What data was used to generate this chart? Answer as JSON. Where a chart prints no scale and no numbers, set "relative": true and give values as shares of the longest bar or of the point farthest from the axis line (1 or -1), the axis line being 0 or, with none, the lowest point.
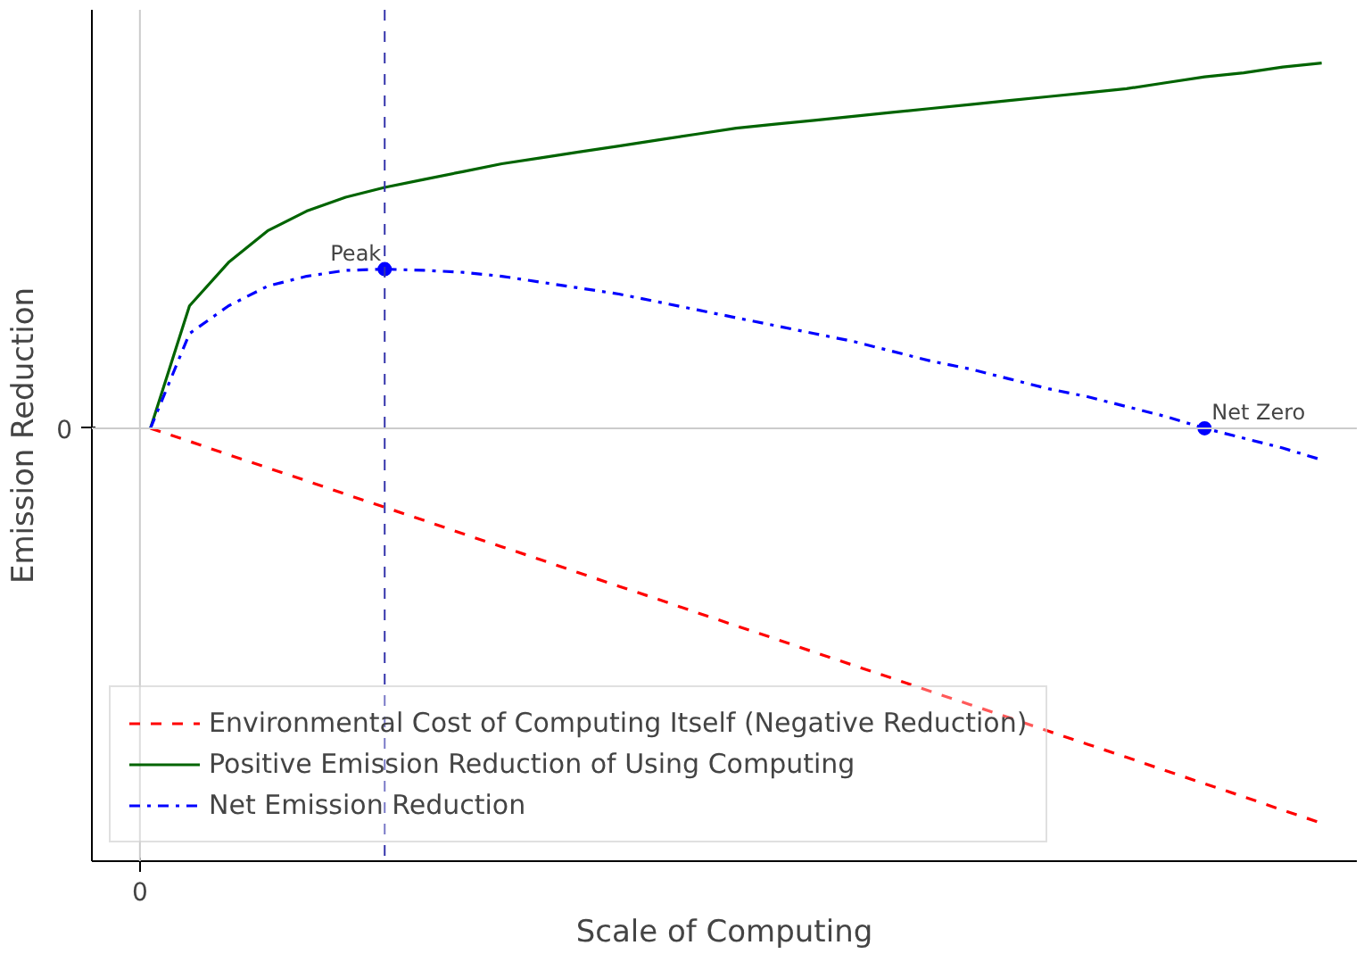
{
  "chart_data": {
    "type": "line",
    "relative": true,
    "xlabel": "Scale of Computing",
    "ylabel": "Emission Reduction",
    "categories": [
      null,
      null,
      null,
      null,
      null,
      null,
      null,
      null,
      null,
      null,
      null,
      null,
      null,
      null,
      null,
      null,
      null,
      null,
      null,
      null,
      null,
      null,
      null,
      null,
      null,
      null,
      null,
      null,
      null,
      null,
      null
    ],
    "series": [
      {
        "name": "Environmental Cost of Computing Itself (Negative Reduction)",
        "color": "#ff0000",
        "line_style": "dashed",
        "values": [
          0,
          -0.033,
          -0.067,
          -0.1,
          -0.133,
          -0.167,
          -0.2,
          -0.233,
          -0.267,
          -0.3,
          -0.333,
          -0.367,
          -0.4,
          -0.433,
          -0.467,
          -0.5,
          -0.533,
          -0.567,
          -0.6,
          -0.633,
          -0.667,
          -0.7,
          -0.733,
          -0.767,
          -0.8,
          -0.833,
          -0.867,
          -0.9,
          -0.933,
          -0.967,
          -1
        ]
      },
      {
        "name": "Positive Emission Reduction of Using Computing",
        "color": "#006400",
        "line_style": "solid",
        "values": [
          0,
          0.31,
          0.42,
          0.5,
          0.55,
          0.585,
          0.61,
          0.63,
          0.65,
          0.67,
          0.685,
          0.7,
          0.715,
          0.73,
          0.745,
          0.76,
          0.77,
          0.78,
          0.79,
          0.8,
          0.81,
          0.82,
          0.83,
          0.84,
          0.85,
          0.86,
          0.875,
          0.89,
          0.9,
          0.915,
          0.925
        ]
      },
      {
        "name": "Net Emission Reduction",
        "color": "#0000ff",
        "line_style": "dashdot",
        "values": [
          0,
          0.24,
          0.31,
          0.36,
          0.385,
          0.4,
          0.403,
          0.4,
          0.395,
          0.385,
          0.37,
          0.355,
          0.34,
          0.32,
          0.3,
          0.28,
          0.26,
          0.24,
          0.22,
          0.195,
          0.17,
          0.15,
          0.125,
          0.1,
          0.08,
          0.055,
          0.03,
          0,
          -0.025,
          -0.05,
          -0.08
        ]
      }
    ],
    "ref_lines": [
      {
        "axis": "y",
        "value": 0,
        "color": "#cccccc",
        "line_style": "solid"
      },
      {
        "axis": "x",
        "color": "#cccccc",
        "line_style": "solid"
      },
      {
        "axis": "x",
        "color": "#3333aa",
        "line_style": "dashed"
      }
    ],
    "annotations": [
      {
        "text": "Peak",
        "y": 0.403
      },
      "Net Zero",
      "0",
      "0"
    ],
    "legend": "bottom left"
  }
}
